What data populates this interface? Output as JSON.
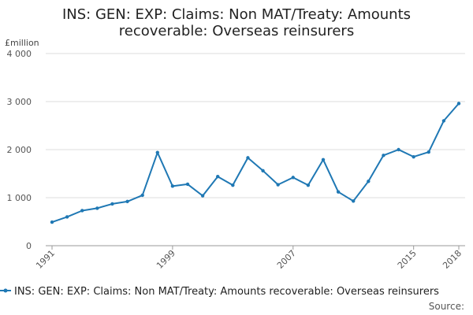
{
  "chart_data": {
    "type": "line",
    "title": "INS: GEN: EXP: Claims: Non MAT/Treaty: Amounts recoverable: Overseas reinsurers",
    "title_lines": [
      "INS: GEN: EXP: Claims: Non MAT/Treaty: Amounts",
      "recoverable: Overseas reinsurers"
    ],
    "y_unit": "£million",
    "ylim": [
      0,
      4000
    ],
    "y_ticks": [
      0,
      1000,
      2000,
      3000,
      4000
    ],
    "y_tick_labels": [
      "0",
      "1 000",
      "2 000",
      "3 000",
      "4 000"
    ],
    "x_tick_labels": [
      "1991",
      "1999",
      "2007",
      "2015",
      "2018"
    ],
    "x": [
      1991,
      1992,
      1993,
      1994,
      1995,
      1996,
      1997,
      1998,
      1999,
      2000,
      2001,
      2002,
      2003,
      2004,
      2005,
      2006,
      2007,
      2008,
      2009,
      2010,
      2011,
      2012,
      2013,
      2014,
      2015,
      2016,
      2017,
      2018
    ],
    "series": [
      {
        "name": "INS: GEN: EXP: Claims: Non MAT/Treaty: Amounts recoverable: Overseas reinsurers",
        "color": "#1f78b4",
        "values": [
          490,
          600,
          730,
          780,
          870,
          920,
          1050,
          1940,
          1240,
          1280,
          1040,
          1440,
          1260,
          1830,
          1560,
          1270,
          1420,
          1260,
          1790,
          1120,
          930,
          1340,
          1880,
          2000,
          1850,
          1950,
          2600,
          2960
        ]
      }
    ],
    "grid": true,
    "legend_position": "bottom",
    "source_label": "Source:"
  }
}
